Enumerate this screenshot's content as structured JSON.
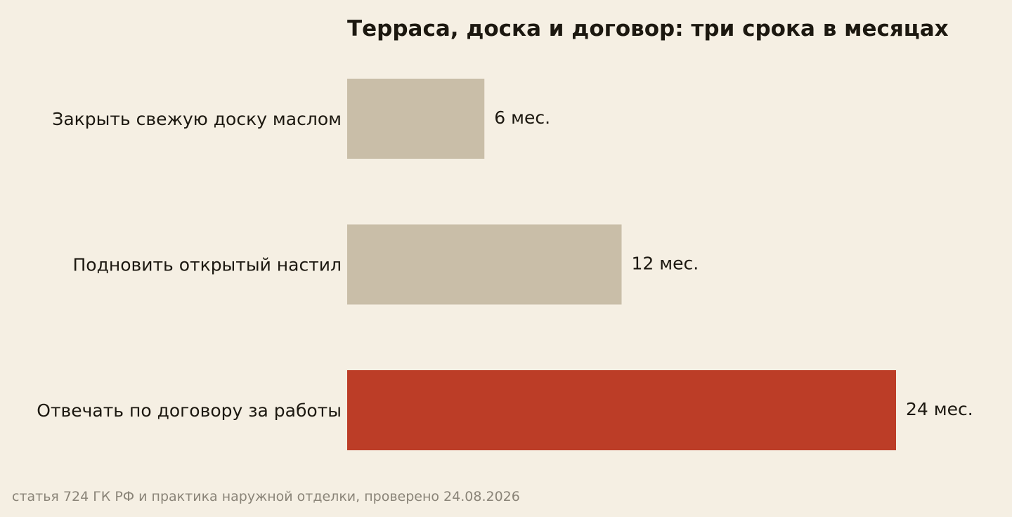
{
  "chart_data": {
    "type": "bar",
    "orientation": "horizontal",
    "title": "Терраса, доска и договор: три срока в месяцах",
    "categories": [
      "Закрыть свежую доску маслом",
      "Подновить открытый настил",
      "Отвечать по договору за работы"
    ],
    "values": [
      6,
      12,
      24
    ],
    "value_labels": [
      "6 мес.",
      "12 мес.",
      "24 мес."
    ],
    "bar_colors": [
      "#c9bea8",
      "#c9bea8",
      "#bc3d27"
    ],
    "xlim": [
      0,
      24
    ],
    "grid": false,
    "xlabel": "",
    "ylabel": ""
  },
  "source_note": "статья 724 ГК РФ и практика наружной отделки, проверено 24.08.2026"
}
